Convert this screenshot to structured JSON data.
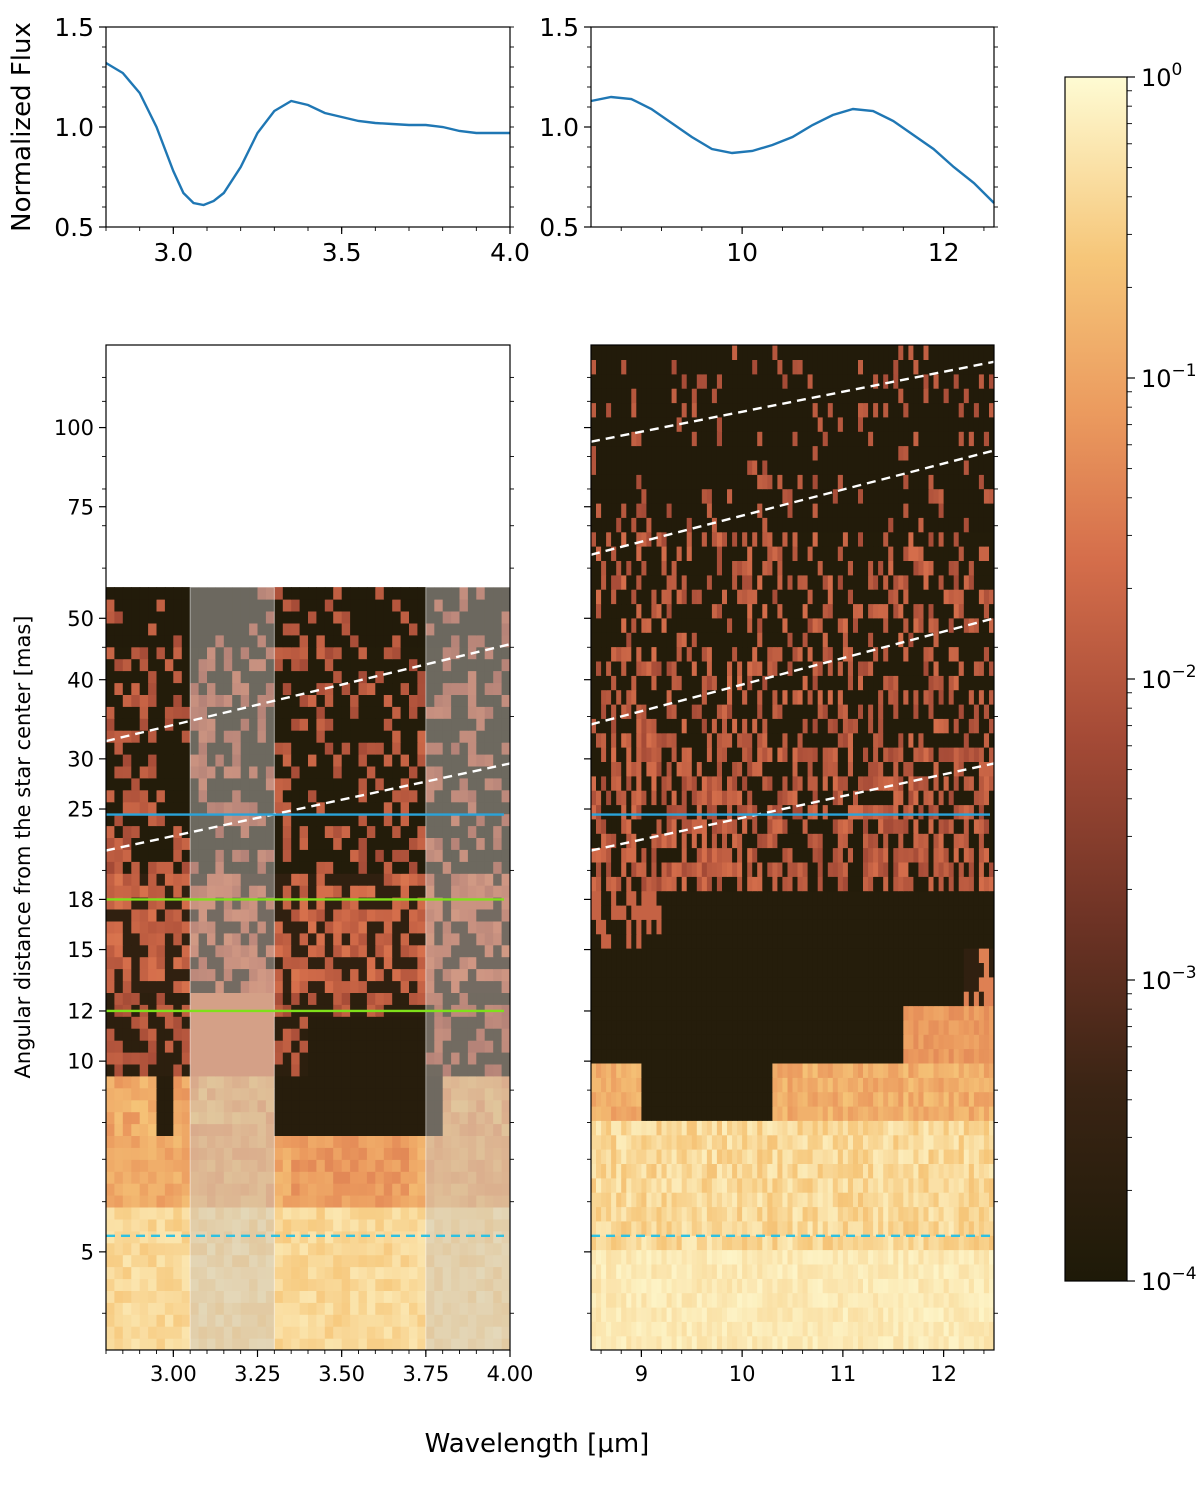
{
  "chart_data": [
    {
      "type": "line",
      "panel": "flux-L",
      "ylabel": "Normalized Flux",
      "xlim": [
        2.8,
        4.0
      ],
      "ylim": [
        0.5,
        1.5
      ],
      "xticks": [
        3.0,
        3.5,
        4.0
      ],
      "xtick_labels": [
        "3.0",
        "3.5",
        "4.0"
      ],
      "yticks": [
        0.5,
        1.0,
        1.5
      ],
      "ytick_labels": [
        "0.5",
        "1.0",
        "1.5"
      ],
      "series": [
        {
          "color": "#1f77b4",
          "x": [
            2.8,
            2.85,
            2.9,
            2.95,
            3.0,
            3.03,
            3.06,
            3.09,
            3.12,
            3.15,
            3.2,
            3.25,
            3.3,
            3.35,
            3.4,
            3.45,
            3.5,
            3.55,
            3.6,
            3.65,
            3.7,
            3.75,
            3.8,
            3.85,
            3.9,
            3.95,
            4.0
          ],
          "y": [
            1.32,
            1.27,
            1.17,
            1.0,
            0.78,
            0.67,
            0.62,
            0.61,
            0.63,
            0.67,
            0.8,
            0.97,
            1.08,
            1.13,
            1.11,
            1.07,
            1.05,
            1.03,
            1.02,
            1.015,
            1.01,
            1.01,
            1.0,
            0.98,
            0.97,
            0.97,
            0.97
          ]
        }
      ]
    },
    {
      "type": "line",
      "panel": "flux-N",
      "xlim": [
        8.5,
        12.5
      ],
      "ylim": [
        0.5,
        1.5
      ],
      "xticks": [
        10,
        12
      ],
      "xtick_labels": [
        "10",
        "12"
      ],
      "yticks": [
        0.5,
        1.0,
        1.5
      ],
      "ytick_labels": [
        "0.5",
        "1.0",
        "1.5"
      ],
      "series": [
        {
          "color": "#1f77b4",
          "x": [
            8.5,
            8.7,
            8.9,
            9.1,
            9.3,
            9.5,
            9.7,
            9.9,
            10.1,
            10.3,
            10.5,
            10.7,
            10.9,
            11.1,
            11.3,
            11.5,
            11.7,
            11.9,
            12.1,
            12.3,
            12.5
          ],
          "y": [
            1.13,
            1.15,
            1.14,
            1.09,
            1.02,
            0.95,
            0.89,
            0.87,
            0.88,
            0.91,
            0.95,
            1.01,
            1.06,
            1.09,
            1.08,
            1.03,
            0.96,
            0.89,
            0.8,
            0.72,
            0.62
          ]
        }
      ]
    },
    {
      "type": "heatmap",
      "panel": "map-L",
      "ylabel": "Angular distance from the star center [mas]",
      "xlim": [
        2.8,
        4.0
      ],
      "ylim": [
        3.5,
        135
      ],
      "yscale": "log",
      "xticks": [
        3.0,
        3.25,
        3.5,
        3.75,
        4.0
      ],
      "xtick_labels": [
        "3.00",
        "3.25",
        "3.50",
        "3.75",
        "4.00"
      ],
      "yticks": [
        5,
        10,
        12,
        15,
        18,
        25,
        30,
        40,
        50,
        75,
        100
      ],
      "ytick_labels": [
        "5",
        "10",
        "12",
        "15",
        "18",
        "25",
        "30",
        "40",
        "50",
        "75",
        "100"
      ],
      "data_extent_y": [
        3.5,
        56
      ],
      "shaded_bands": [
        [
          3.05,
          3.3
        ],
        [
          3.75,
          4.0
        ]
      ],
      "dashed_curves": [
        {
          "x": [
            2.8,
            4.0
          ],
          "y": [
            32,
            45.5
          ]
        },
        {
          "x": [
            2.8,
            4.0
          ],
          "y": [
            21.5,
            29.5
          ]
        }
      ],
      "hlines": [
        {
          "y": 24.5,
          "color": "#2aa3d9",
          "style": "solid"
        },
        {
          "y": 18,
          "color": "#7fe01a",
          "style": "solid"
        },
        {
          "y": 12,
          "color": "#7fe01a",
          "style": "solid"
        },
        {
          "y": 5.3,
          "color": "#2ec0e0",
          "style": "dashed"
        }
      ]
    },
    {
      "type": "heatmap",
      "panel": "map-N",
      "xlim": [
        8.5,
        12.5
      ],
      "ylim": [
        3.5,
        135
      ],
      "yscale": "log",
      "xticks": [
        9,
        10,
        11,
        12
      ],
      "xtick_labels": [
        "9",
        "10",
        "11",
        "12"
      ],
      "data_extent_y": [
        3.5,
        135
      ],
      "dashed_curves": [
        {
          "x": [
            8.5,
            12.5
          ],
          "y": [
            95,
            127
          ]
        },
        {
          "x": [
            8.5,
            12.5
          ],
          "y": [
            63,
            92
          ]
        },
        {
          "x": [
            8.5,
            12.5
          ],
          "y": [
            34,
            50
          ]
        },
        {
          "x": [
            8.5,
            12.5
          ],
          "y": [
            21.5,
            29.5
          ]
        }
      ],
      "hlines": [
        {
          "y": 24.5,
          "color": "#2aa3d9",
          "style": "solid"
        },
        {
          "y": 5.3,
          "color": "#2ec0e0",
          "style": "dashed"
        }
      ]
    }
  ],
  "colorbar": {
    "scale": "log",
    "range": [
      0.0001,
      1
    ],
    "ticks": [
      {
        "value": 0.0001,
        "label": "10",
        "exp": "−4"
      },
      {
        "value": 0.001,
        "label": "10",
        "exp": "−3"
      },
      {
        "value": 0.01,
        "label": "10",
        "exp": "−2"
      },
      {
        "value": 0.1,
        "label": "10",
        "exp": "−1"
      },
      {
        "value": 1,
        "label": "10",
        "exp": "0"
      }
    ],
    "colors": [
      "#1e1a08",
      "#5a2d1e",
      "#9c4634",
      "#d26a48",
      "#eea160",
      "#f7cf80",
      "#fdf5c8"
    ]
  },
  "shared_xlabel": "Wavelength [µm]"
}
